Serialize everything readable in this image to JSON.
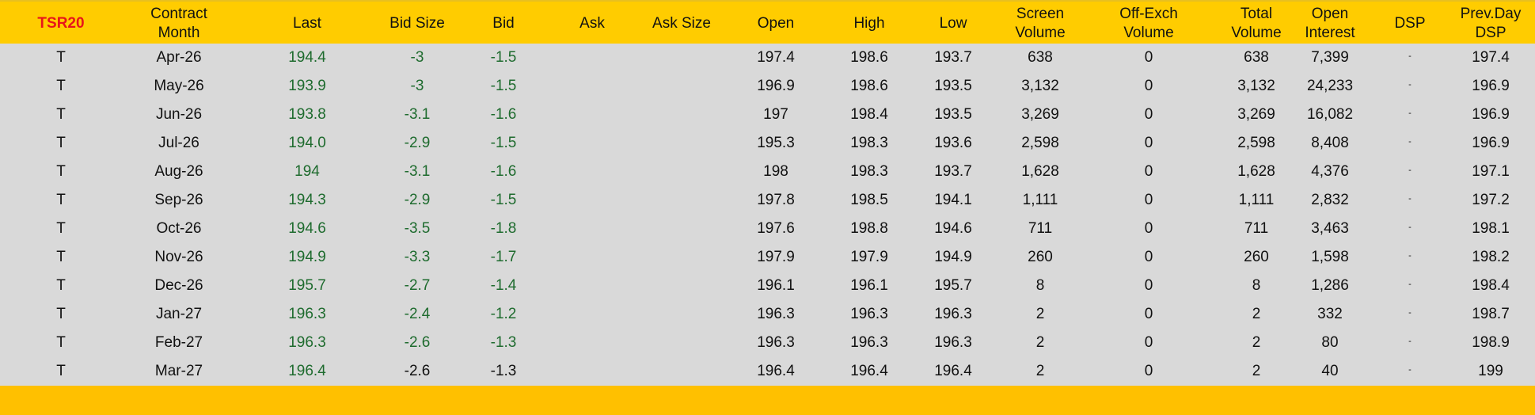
{
  "header": {
    "columns": [
      "TSR20",
      "Contract\nMonth",
      "Last",
      "Bid Size",
      "Bid",
      "Ask",
      "Ask Size",
      "Open",
      "High",
      "Low",
      "Screen\nVolume",
      "Off-Exch\nVolume",
      "Total\nVolume",
      "Open\nInterest",
      "DSP",
      "Prev.Day\nDSP"
    ]
  },
  "colors": {
    "header_bg": "#ffcc00",
    "row_bg": "#d9d9d9",
    "brand": "#e8141a",
    "positive_green": "#1e6b2e"
  },
  "rows": [
    [
      "T",
      "Apr-26",
      "194.4",
      "-3",
      "-1.5",
      "",
      "",
      "197.4",
      "198.6",
      "193.7",
      "638",
      "0",
      "638",
      "7,399",
      "-",
      "197.4"
    ],
    [
      "T",
      "May-26",
      "193.9",
      "-3",
      "-1.5",
      "",
      "",
      "196.9",
      "198.6",
      "193.5",
      "3,132",
      "0",
      "3,132",
      "24,233",
      "-",
      "196.9"
    ],
    [
      "T",
      "Jun-26",
      "193.8",
      "-3.1",
      "-1.6",
      "",
      "",
      "197",
      "198.4",
      "193.5",
      "3,269",
      "0",
      "3,269",
      "16,082",
      "-",
      "196.9"
    ],
    [
      "T",
      "Jul-26",
      "194.0",
      "-2.9",
      "-1.5",
      "",
      "",
      "195.3",
      "198.3",
      "193.6",
      "2,598",
      "0",
      "2,598",
      "8,408",
      "-",
      "196.9"
    ],
    [
      "T",
      "Aug-26",
      "194",
      "-3.1",
      "-1.6",
      "",
      "",
      "198",
      "198.3",
      "193.7",
      "1,628",
      "0",
      "1,628",
      "4,376",
      "-",
      "197.1"
    ],
    [
      "T",
      "Sep-26",
      "194.3",
      "-2.9",
      "-1.5",
      "",
      "",
      "197.8",
      "198.5",
      "194.1",
      "1,111",
      "0",
      "1,111",
      "2,832",
      "-",
      "197.2"
    ],
    [
      "T",
      "Oct-26",
      "194.6",
      "-3.5",
      "-1.8",
      "",
      "",
      "197.6",
      "198.8",
      "194.6",
      "711",
      "0",
      "711",
      "3,463",
      "-",
      "198.1"
    ],
    [
      "T",
      "Nov-26",
      "194.9",
      "-3.3",
      "-1.7",
      "",
      "",
      "197.9",
      "197.9",
      "194.9",
      "260",
      "0",
      "260",
      "1,598",
      "-",
      "198.2"
    ],
    [
      "T",
      "Dec-26",
      "195.7",
      "-2.7",
      "-1.4",
      "",
      "",
      "196.1",
      "196.1",
      "195.7",
      "8",
      "0",
      "8",
      "1,286",
      "-",
      "198.4"
    ],
    [
      "T",
      "Jan-27",
      "196.3",
      "-2.4",
      "-1.2",
      "",
      "",
      "196.3",
      "196.3",
      "196.3",
      "2",
      "0",
      "2",
      "332",
      "-",
      "198.7"
    ],
    [
      "T",
      "Feb-27",
      "196.3",
      "-2.6",
      "-1.3",
      "",
      "",
      "196.3",
      "196.3",
      "196.3",
      "2",
      "0",
      "2",
      "80",
      "-",
      "198.9"
    ],
    [
      "T",
      "Mar-27",
      "196.4",
      "-2.6",
      "-1.3",
      "",
      "",
      "196.4",
      "196.4",
      "196.4",
      "2",
      "0",
      "2",
      "40",
      "-",
      "199"
    ]
  ],
  "green_bid_rows": 11
}
